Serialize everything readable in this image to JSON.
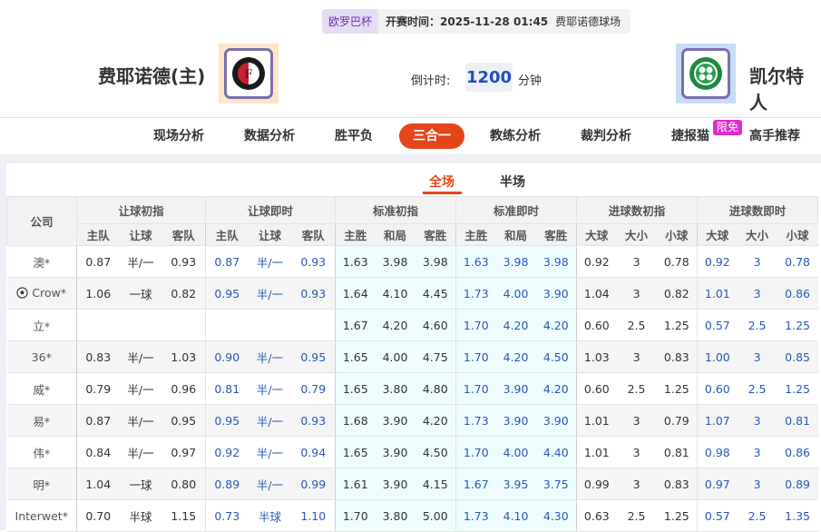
{
  "header": {
    "league": "欧罗巴杯",
    "kickoff": "开赛时间：2025-11-28 01:45",
    "venue": "费耶诺德球场",
    "home_team": "费耶诺德(主)",
    "away_team": "凯尔特人",
    "countdown_label": "倒计时:",
    "countdown_value": "1200",
    "countdown_unit": "分钟"
  },
  "nav": {
    "items": [
      "现场分析",
      "数据分析",
      "胜平负",
      "三合一",
      "教练分析",
      "裁判分析",
      "捷报猫",
      "高手推荐"
    ],
    "active": "三合一",
    "badge": "限免"
  },
  "tabs": {
    "full": "全场",
    "half": "半场",
    "active": "全场"
  },
  "colors": {
    "accent": "#e4461a",
    "live_value": "#2a58b8",
    "badge": "#e02bd0"
  },
  "table": {
    "company_header": "公司",
    "groups": [
      "让球初指",
      "让球即时",
      "标准初指",
      "标准即时",
      "进球数初指",
      "进球数即时"
    ],
    "subheaders": [
      "主队",
      "让球",
      "客队",
      "主队",
      "让球",
      "客队",
      "主胜",
      "和局",
      "客胜",
      "主胜",
      "和局",
      "客胜",
      "大球",
      "大小",
      "小球",
      "大球",
      "大小",
      "小球"
    ],
    "rows": [
      {
        "company": "澳*",
        "icon": null,
        "values": [
          "0.87",
          "半/一",
          "0.93",
          "0.87",
          "半/一",
          "0.93",
          "1.63",
          "3.98",
          "3.98",
          "1.63",
          "3.98",
          "3.98",
          "0.92",
          "3",
          "0.78",
          "0.92",
          "3",
          "0.78"
        ]
      },
      {
        "company": "Crow*",
        "icon": "soccer-ball-icon",
        "values": [
          "1.06",
          "一球",
          "0.82",
          "0.95",
          "半/一",
          "0.93",
          "1.64",
          "4.10",
          "4.45",
          "1.73",
          "4.00",
          "3.90",
          "1.04",
          "3",
          "0.82",
          "1.01",
          "3",
          "0.86"
        ]
      },
      {
        "company": "立*",
        "icon": null,
        "values": [
          "",
          "",
          "",
          "",
          "",
          "",
          "1.67",
          "4.20",
          "4.60",
          "1.70",
          "4.20",
          "4.20",
          "0.60",
          "2.5",
          "1.25",
          "0.57",
          "2.5",
          "1.25"
        ]
      },
      {
        "company": "36*",
        "icon": null,
        "values": [
          "0.83",
          "半/一",
          "1.03",
          "0.90",
          "半/一",
          "0.95",
          "1.65",
          "4.00",
          "4.75",
          "1.70",
          "4.20",
          "4.50",
          "1.03",
          "3",
          "0.83",
          "1.00",
          "3",
          "0.85"
        ]
      },
      {
        "company": "威*",
        "icon": null,
        "values": [
          "0.79",
          "半/一",
          "0.96",
          "0.81",
          "半/一",
          "0.79",
          "1.65",
          "3.80",
          "4.80",
          "1.70",
          "3.90",
          "4.20",
          "0.60",
          "2.5",
          "1.25",
          "0.60",
          "2.5",
          "1.25"
        ]
      },
      {
        "company": "易*",
        "icon": null,
        "values": [
          "0.87",
          "半/一",
          "0.95",
          "0.95",
          "半/一",
          "0.93",
          "1.68",
          "3.90",
          "4.20",
          "1.73",
          "3.90",
          "3.90",
          "1.01",
          "3",
          "0.79",
          "1.07",
          "3",
          "0.81"
        ]
      },
      {
        "company": "伟*",
        "icon": null,
        "values": [
          "0.84",
          "半/一",
          "0.97",
          "0.92",
          "半/一",
          "0.94",
          "1.65",
          "3.90",
          "4.50",
          "1.70",
          "4.00",
          "4.40",
          "1.01",
          "3",
          "0.81",
          "0.98",
          "3",
          "0.86"
        ]
      },
      {
        "company": "明*",
        "icon": null,
        "values": [
          "1.04",
          "一球",
          "0.80",
          "0.89",
          "半/一",
          "0.99",
          "1.61",
          "3.90",
          "4.15",
          "1.67",
          "3.95",
          "3.75",
          "0.99",
          "3",
          "0.83",
          "0.97",
          "3",
          "0.89"
        ]
      },
      {
        "company": "Interwet*",
        "icon": null,
        "values": [
          "0.70",
          "半球",
          "1.15",
          "0.73",
          "半球",
          "1.10",
          "1.70",
          "3.80",
          "5.00",
          "1.73",
          "4.10",
          "4.30",
          "0.63",
          "2.5",
          "1.25",
          "0.57",
          "2.5",
          "1.35"
        ]
      }
    ]
  }
}
